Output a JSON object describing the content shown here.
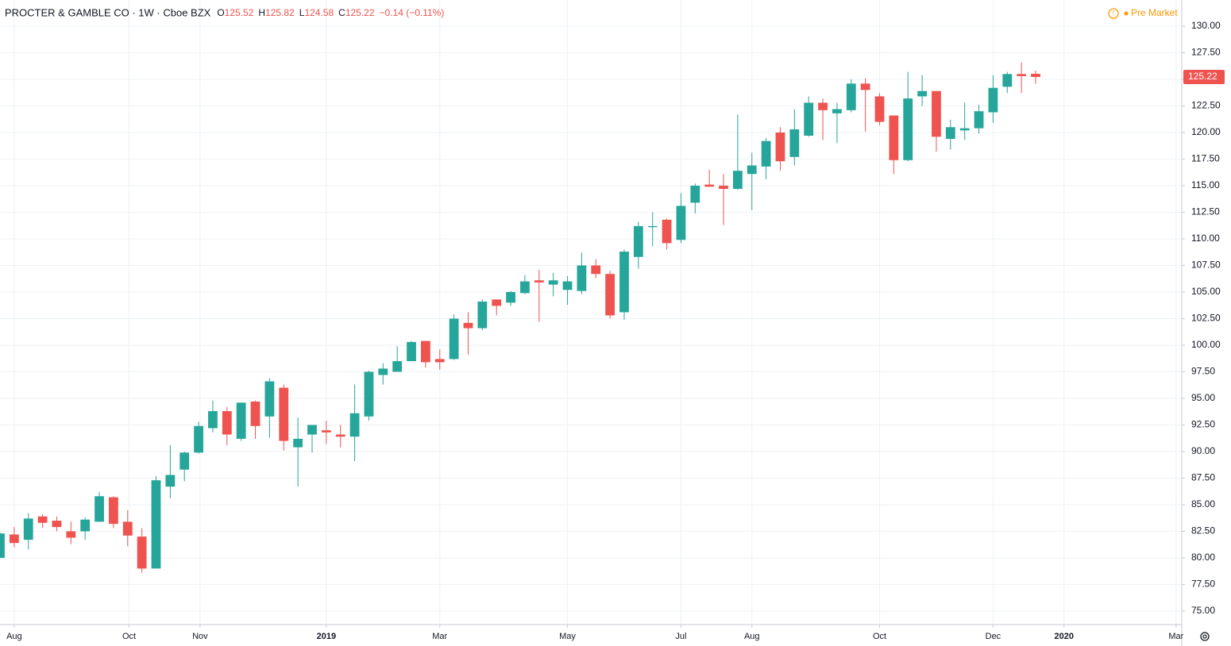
{
  "chart_data": {
    "type": "candlestick",
    "title": "PROCTER & GAMBLE CO · 1W · Cboe BZX",
    "prefixes": [
      "O",
      "H",
      "L",
      "C"
    ],
    "change": "−0.14 (−0.11%)",
    "session": "Pre Market",
    "up_color": "#26a69a",
    "down_color": "#ef5350",
    "grid": true,
    "last_price": 125.22,
    "xlim": [
      0,
      83.3
    ],
    "xticks": [
      {
        "value": 1,
        "label": "Aug"
      },
      {
        "value": 9.1,
        "label": "Oct"
      },
      {
        "value": 14.1,
        "label": "Nov"
      },
      {
        "value": 23,
        "label": "2019"
      },
      {
        "value": 31,
        "label": "Mar"
      },
      {
        "value": 40,
        "label": "May"
      },
      {
        "value": 48,
        "label": "Jul"
      },
      {
        "value": 53,
        "label": "Aug"
      },
      {
        "value": 62,
        "label": "Oct"
      },
      {
        "value": 70,
        "label": "Dec"
      },
      {
        "value": 75,
        "label": "2020"
      },
      {
        "value": 82.9,
        "label": "Mar"
      }
    ],
    "ylim": [
      73.73,
      132.46
    ],
    "yticks": [
      {
        "value": 75,
        "label": "75.00"
      },
      {
        "value": 77.5,
        "label": "77.50"
      },
      {
        "value": 80,
        "label": "80.00"
      },
      {
        "value": 82.5,
        "label": "82.50"
      },
      {
        "value": 85,
        "label": "85.00"
      },
      {
        "value": 87.5,
        "label": "87.50"
      },
      {
        "value": 90,
        "label": "90.00"
      },
      {
        "value": 92.5,
        "label": "92.50"
      },
      {
        "value": 95,
        "label": "95.00"
      },
      {
        "value": 97.5,
        "label": "97.50"
      },
      {
        "value": 100,
        "label": "100.00"
      },
      {
        "value": 102.5,
        "label": "102.50"
      },
      {
        "value": 105,
        "label": "105.00"
      },
      {
        "value": 107.5,
        "label": "107.50"
      },
      {
        "value": 110,
        "label": "110.00"
      },
      {
        "value": 112.5,
        "label": "112.50"
      },
      {
        "value": 115,
        "label": "115.00"
      },
      {
        "value": 117.5,
        "label": "117.50"
      },
      {
        "value": 120,
        "label": "120.00"
      },
      {
        "value": 122.5,
        "label": "122.50"
      },
      {
        "value": 125,
        "label": "125.00"
      },
      {
        "value": 127.5,
        "label": "127.50"
      },
      {
        "value": 130,
        "label": "130.00"
      }
    ],
    "series": [
      {
        "open": [
          80.0,
          82.2,
          81.7,
          83.9,
          83.5,
          82.5,
          82.5,
          83.4,
          85.7,
          83.4,
          82.0,
          79.0,
          86.7,
          88.3,
          89.9,
          92.2,
          93.8,
          91.2,
          94.7,
          93.3,
          96.0,
          90.4,
          91.6,
          92.0,
          91.6,
          91.4,
          93.3,
          97.2,
          97.5,
          98.5,
          100.4,
          98.7,
          98.7,
          102.1,
          101.6,
          104.3,
          104.0,
          104.9,
          106.1,
          105.7,
          105.2,
          105.1,
          107.5,
          106.7,
          103.1,
          108.3,
          111.1,
          111.8,
          109.9,
          113.4,
          115.1,
          115.0,
          114.7,
          116.1,
          116.8,
          120.0,
          117.7,
          119.7,
          122.8,
          121.8,
          122.1,
          124.6,
          123.4,
          121.6,
          117.4,
          123.4,
          123.9,
          119.4,
          120.2,
          120.4,
          121.9,
          124.3,
          125.5,
          125.52
        ],
        "high": [
          82.4,
          82.9,
          84.2,
          84.1,
          83.9,
          83.4,
          83.8,
          86.2,
          85.8,
          84.5,
          82.8,
          87.7,
          90.6,
          90.0,
          92.8,
          94.8,
          94.2,
          94.6,
          94.8,
          96.9,
          96.3,
          93.2,
          92.5,
          92.9,
          92.5,
          96.3,
          97.6,
          98.3,
          99.9,
          100.4,
          100.4,
          99.6,
          102.9,
          103.1,
          104.3,
          104.3,
          105.1,
          106.6,
          107.1,
          106.8,
          106.5,
          108.7,
          108.1,
          107.0,
          109.0,
          111.6,
          112.5,
          111.9,
          114.3,
          115.2,
          116.5,
          116.1,
          121.7,
          118.1,
          119.5,
          120.5,
          122.2,
          123.4,
          123.2,
          122.8,
          125.0,
          125.1,
          123.7,
          121.6,
          125.7,
          125.4,
          123.9,
          121.2,
          122.8,
          122.6,
          125.4,
          125.7,
          126.6,
          125.82
        ],
        "low": [
          80.0,
          81.0,
          80.8,
          82.8,
          82.5,
          81.3,
          81.7,
          83.4,
          82.8,
          81.1,
          78.6,
          79.0,
          85.6,
          87.2,
          89.8,
          91.8,
          90.6,
          91.0,
          91.2,
          91.3,
          90.1,
          86.7,
          89.9,
          90.7,
          90.4,
          89.1,
          92.9,
          96.3,
          97.5,
          98.5,
          97.9,
          97.7,
          98.6,
          99.1,
          101.4,
          102.8,
          103.7,
          104.8,
          102.2,
          104.6,
          103.8,
          104.8,
          106.3,
          102.5,
          102.4,
          107.2,
          109.3,
          109.0,
          109.6,
          112.4,
          114.9,
          111.3,
          114.6,
          112.7,
          115.6,
          116.4,
          116.9,
          119.6,
          119.3,
          119.0,
          121.9,
          120.1,
          120.7,
          116.1,
          117.3,
          122.5,
          118.2,
          118.4,
          119.3,
          119.9,
          120.9,
          123.7,
          123.7,
          124.58
        ],
        "close": [
          82.3,
          81.4,
          83.7,
          83.3,
          82.9,
          81.9,
          83.6,
          85.8,
          83.2,
          82.1,
          79.0,
          87.3,
          87.8,
          89.9,
          92.4,
          93.8,
          91.6,
          94.6,
          92.4,
          96.6,
          91.0,
          91.2,
          92.5,
          91.8,
          91.4,
          93.6,
          97.5,
          97.8,
          98.5,
          100.3,
          98.4,
          98.4,
          102.5,
          101.6,
          104.1,
          103.7,
          105.0,
          106.0,
          105.9,
          106.1,
          106.0,
          107.5,
          106.7,
          102.8,
          108.8,
          111.2,
          111.2,
          109.6,
          113.1,
          115.0,
          114.9,
          114.7,
          116.4,
          116.9,
          119.2,
          117.3,
          120.3,
          122.8,
          122.1,
          122.2,
          124.6,
          124.0,
          121.0,
          117.4,
          123.2,
          123.9,
          119.6,
          120.5,
          120.4,
          122.0,
          124.2,
          125.5,
          125.3,
          125.22
        ]
      }
    ]
  }
}
